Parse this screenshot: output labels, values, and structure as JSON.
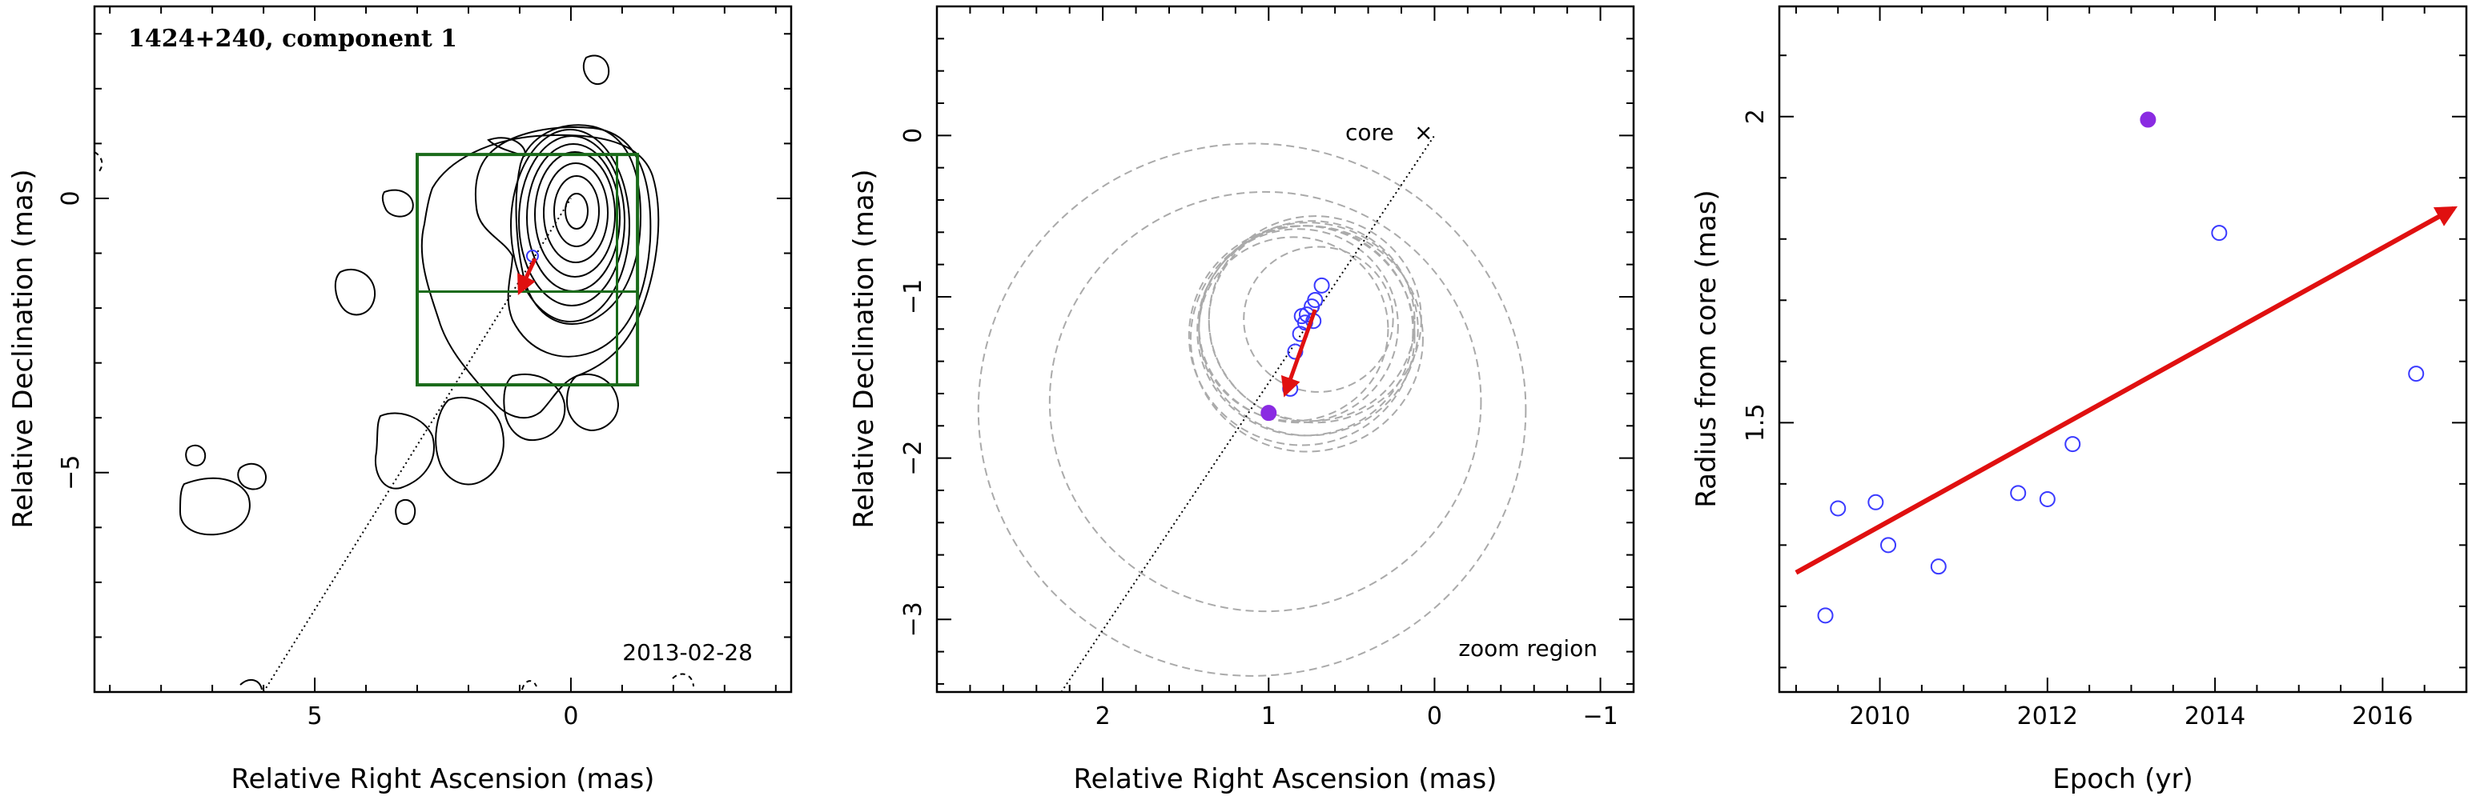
{
  "chart_data": [
    {
      "type": "contour",
      "title": "1424+240, component 1",
      "date_label": "2013‑02‑28",
      "xlabel": "Relative Right Ascension (mas)",
      "ylabel": "Relative Declination (mas)",
      "xlim": [
        9.3,
        -4.3
      ],
      "ylim": [
        -9.0,
        3.5
      ],
      "xticks": [
        {
          "v": 5,
          "label": "5"
        },
        {
          "v": 0,
          "label": "0"
        }
      ],
      "yticks": [
        {
          "v": 0,
          "label": "0"
        },
        {
          "v": -5,
          "label": "−5"
        }
      ],
      "colors": {
        "frame": "#000000",
        "box": "#1a6b1a",
        "vector": "#e01010",
        "points": "#3a3aff"
      },
      "peak": [
        0.0,
        0.0
      ],
      "zoom_box": {
        "ra": [
          3.0,
          -1.3
        ],
        "dec": [
          -3.4,
          0.8
        ]
      },
      "grid_lines": {
        "ra": -0.9,
        "dec": -1.7
      },
      "jet_line": {
        "from": [
          6.0,
          -9.0
        ],
        "to": [
          0.0,
          0.0
        ]
      },
      "vector": {
        "from": [
          0.7,
          -1.1
        ],
        "to": [
          1.0,
          -1.7
        ]
      },
      "marker": [
        0.75,
        -1.05
      ]
    },
    {
      "type": "scatter",
      "xlabel": "Relative Right Ascension (mas)",
      "ylabel": "Relative Declination (mas)",
      "xlim": [
        3.0,
        -1.2
      ],
      "ylim": [
        -3.45,
        0.8
      ],
      "xticks": [
        {
          "v": 2,
          "label": "2"
        },
        {
          "v": 1,
          "label": "1"
        },
        {
          "v": 0,
          "label": "0"
        },
        {
          "v": -1,
          "label": "−1"
        }
      ],
      "yticks": [
        {
          "v": 0,
          "label": "0"
        },
        {
          "v": -1,
          "label": "−1"
        },
        {
          "v": -2,
          "label": "−2"
        },
        {
          "v": -3,
          "label": "−3"
        }
      ],
      "core_label": "core",
      "core_mark": "×",
      "zoom_label": "zoom region",
      "jet_line": {
        "from": [
          2.25,
          -3.45
        ],
        "to": [
          0.0,
          0.0
        ]
      },
      "points": [
        {
          "x": 0.68,
          "y": -0.93
        },
        {
          "x": 0.72,
          "y": -1.02
        },
        {
          "x": 0.74,
          "y": -1.06
        },
        {
          "x": 0.77,
          "y": -1.11
        },
        {
          "x": 0.8,
          "y": -1.12
        },
        {
          "x": 0.73,
          "y": -1.15
        },
        {
          "x": 0.78,
          "y": -1.16
        },
        {
          "x": 0.81,
          "y": -1.23
        },
        {
          "x": 0.84,
          "y": -1.34
        },
        {
          "x": 0.87,
          "y": -1.57
        }
      ],
      "highlight": {
        "x": 1.0,
        "y": -1.72
      },
      "vector": {
        "from": [
          0.72,
          -1.08
        ],
        "to": [
          0.9,
          -1.6
        ]
      },
      "circles": [
        {
          "cx": 0.7,
          "cy": -1.14,
          "r": 0.45
        },
        {
          "cx": 0.78,
          "cy": -1.21,
          "r": 0.65
        },
        {
          "cx": 0.74,
          "cy": -1.15,
          "r": 0.62
        },
        {
          "cx": 0.76,
          "cy": -1.2,
          "r": 0.66
        },
        {
          "cx": 0.8,
          "cy": -1.24,
          "r": 0.68
        },
        {
          "cx": 0.72,
          "cy": -1.14,
          "r": 0.64
        },
        {
          "cx": 0.77,
          "cy": -1.26,
          "r": 0.7
        },
        {
          "cx": 0.82,
          "cy": -1.18,
          "r": 0.6
        },
        {
          "cx": 0.85,
          "cy": -1.2,
          "r": 0.57
        },
        {
          "cx": 1.02,
          "cy": -1.65,
          "r": 1.3
        },
        {
          "cx": 1.1,
          "cy": -1.7,
          "r": 1.65
        }
      ],
      "colors": {
        "points": "#3a3aff",
        "highlight": "#8a2be2",
        "vector": "#e01010",
        "circles": "#aaaaaa"
      }
    },
    {
      "type": "scatter",
      "xlabel": "Epoch (yr)",
      "ylabel": "Radius from core (mas)",
      "xlim": [
        2008.8,
        2017.0
      ],
      "ylim": [
        1.06,
        2.18
      ],
      "xticks": [
        {
          "v": 2010,
          "label": "2010"
        },
        {
          "v": 2012,
          "label": "2012"
        },
        {
          "v": 2014,
          "label": "2014"
        },
        {
          "v": 2016,
          "label": "2016"
        }
      ],
      "yticks": [
        {
          "v": 1.5,
          "label": "1.5"
        },
        {
          "v": 2,
          "label": "2"
        }
      ],
      "points": [
        {
          "x": 2009.35,
          "y": 1.185
        },
        {
          "x": 2009.5,
          "y": 1.36
        },
        {
          "x": 2009.95,
          "y": 1.37
        },
        {
          "x": 2010.1,
          "y": 1.3
        },
        {
          "x": 2010.7,
          "y": 1.265
        },
        {
          "x": 2011.65,
          "y": 1.385
        },
        {
          "x": 2012.0,
          "y": 1.375
        },
        {
          "x": 2012.3,
          "y": 1.465
        },
        {
          "x": 2014.05,
          "y": 1.81
        },
        {
          "x": 2016.4,
          "y": 1.58
        }
      ],
      "highlight": {
        "x": 2013.2,
        "y": 1.995
      },
      "trend": {
        "from": [
          2009.0,
          1.255
        ],
        "to": [
          2016.85,
          1.85
        ]
      },
      "colors": {
        "points": "#3a3aff",
        "highlight": "#8a2be2",
        "trend": "#e01010"
      }
    }
  ]
}
